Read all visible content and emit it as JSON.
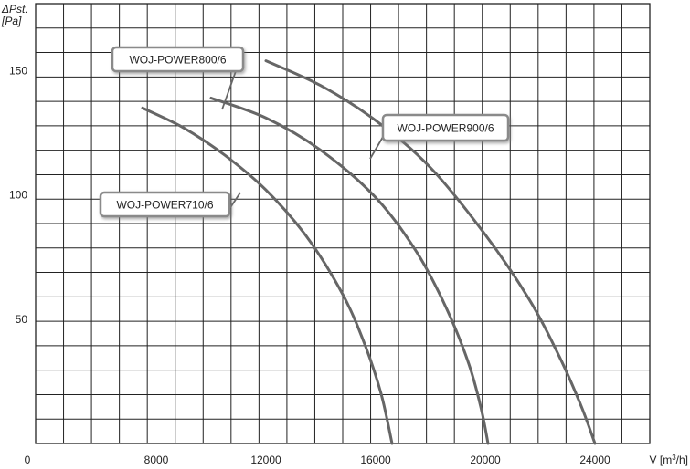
{
  "chart_data": {
    "type": "line",
    "ylabel_line1": "ΔPst.",
    "ylabel_line2": "[Pa]",
    "xlabel_main": "V [m",
    "xlabel_sup": "3",
    "xlabel_end": "/h]",
    "origin_label": "0",
    "xlim": [
      3600,
      26000
    ],
    "ylim": [
      0,
      177
    ],
    "x_ticks": [
      8000,
      12000,
      16000,
      20000,
      24000
    ],
    "y_ticks": [
      50,
      100,
      150
    ],
    "x_tick_labels": [
      "8000",
      "12000",
      "16000",
      "20000",
      "24000"
    ],
    "y_tick_labels": [
      "50",
      "100",
      "150"
    ],
    "grid": true,
    "line_color": "#666666",
    "series": [
      {
        "name": "WOJ-POWER710/6",
        "points": [
          [
            7500,
            135
          ],
          [
            9000,
            127
          ],
          [
            10500,
            116
          ],
          [
            12000,
            102
          ],
          [
            13500,
            83
          ],
          [
            14800,
            60
          ],
          [
            15600,
            40
          ],
          [
            16200,
            20
          ],
          [
            16600,
            0
          ]
        ]
      },
      {
        "name": "WOJ-POWER800/6",
        "points": [
          [
            10000,
            139
          ],
          [
            12000,
            131
          ],
          [
            14000,
            118
          ],
          [
            16000,
            99
          ],
          [
            17500,
            77
          ],
          [
            18600,
            54
          ],
          [
            19400,
            32
          ],
          [
            19850,
            14
          ],
          [
            20100,
            0
          ]
        ]
      },
      {
        "name": "WOJ-POWER900/6",
        "points": [
          [
            12000,
            154
          ],
          [
            14000,
            144
          ],
          [
            16000,
            130
          ],
          [
            18000,
            111
          ],
          [
            20000,
            84
          ],
          [
            21600,
            58
          ],
          [
            22700,
            35
          ],
          [
            23500,
            15
          ],
          [
            24000,
            0
          ]
        ]
      }
    ]
  }
}
